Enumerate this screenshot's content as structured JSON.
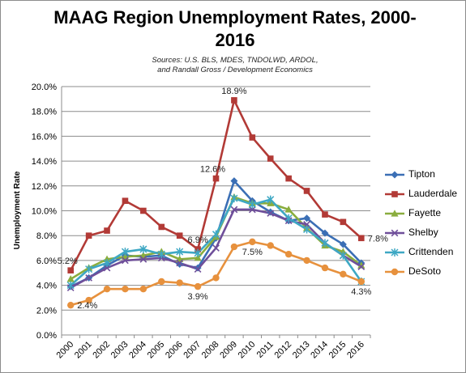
{
  "chart_data": {
    "type": "line",
    "title_line1": "MAAG Region Unemployment Rates, 2000-",
    "title_line2": "2016",
    "subtitle_line1": "Sources: U.S. BLS, MDES, TNDOLWD, ARDOL,",
    "subtitle_line2": "and Randall Gross / Development Economics",
    "ylabel": "Unemployment Rate",
    "xlabel": "",
    "ylim": [
      0,
      20
    ],
    "yticks": [
      "0.0%",
      "2.0%",
      "4.0%",
      "6.0%",
      "8.0%",
      "10.0%",
      "12.0%",
      "14.0%",
      "16.0%",
      "18.0%",
      "20.0%"
    ],
    "categories": [
      "2000",
      "2001",
      "2002",
      "2003",
      "2004",
      "2005",
      "2006",
      "2007",
      "2008",
      "2009",
      "2010",
      "2011",
      "2012",
      "2013",
      "2014",
      "2015",
      "2016"
    ],
    "grid": true,
    "legend_position": "right",
    "series": [
      {
        "name": "Tipton",
        "color": "#3b6fb5",
        "marker": "diamond",
        "values": [
          3.9,
          4.6,
          5.6,
          6.4,
          6.3,
          6.4,
          5.7,
          5.4,
          7.8,
          12.4,
          10.8,
          9.9,
          9.2,
          9.4,
          8.2,
          7.3,
          5.8
        ]
      },
      {
        "name": "Lauderdale",
        "color": "#b23a36",
        "marker": "square",
        "values": [
          5.2,
          8.0,
          8.4,
          10.8,
          10.0,
          8.7,
          8.0,
          6.9,
          12.6,
          18.9,
          15.9,
          14.2,
          12.6,
          11.6,
          9.7,
          9.1,
          7.8
        ]
      },
      {
        "name": "Fayette",
        "color": "#8aad3e",
        "marker": "triangle",
        "values": [
          4.5,
          5.4,
          6.1,
          6.3,
          6.4,
          6.7,
          6.1,
          6.2,
          7.9,
          11.1,
          10.6,
          10.6,
          10.1,
          8.6,
          7.2,
          6.7,
          5.6
        ]
      },
      {
        "name": "Shelby",
        "color": "#6f4f9a",
        "marker": "x",
        "values": [
          3.8,
          4.6,
          5.4,
          6.0,
          6.1,
          6.2,
          5.8,
          5.3,
          7.0,
          10.1,
          10.1,
          9.8,
          9.2,
          8.9,
          7.4,
          6.4,
          5.5
        ]
      },
      {
        "name": "Crittenden",
        "color": "#3ea8c4",
        "marker": "star",
        "values": [
          4.0,
          5.3,
          5.8,
          6.7,
          6.9,
          6.5,
          6.7,
          6.6,
          8.1,
          11.0,
          10.5,
          10.9,
          9.4,
          8.5,
          7.4,
          6.4,
          4.3
        ]
      },
      {
        "name": "DeSoto",
        "color": "#e7913d",
        "marker": "circle",
        "values": [
          2.4,
          2.8,
          3.7,
          3.7,
          3.7,
          4.3,
          4.2,
          3.9,
          4.6,
          7.1,
          7.5,
          7.2,
          6.5,
          6.0,
          5.4,
          4.9,
          4.3
        ]
      }
    ],
    "annotations": [
      {
        "text": "5.2%",
        "x": "2000",
        "series": "Lauderdale",
        "side": "above-left"
      },
      {
        "text": "2.4%",
        "x": "2000",
        "series": "DeSoto",
        "side": "right"
      },
      {
        "text": "6.9%",
        "x": "2007",
        "series": "Lauderdale",
        "side": "above"
      },
      {
        "text": "3.9%",
        "x": "2007",
        "series": "DeSoto",
        "side": "below"
      },
      {
        "text": "12.6%",
        "x": "2008",
        "series": "Lauderdale",
        "side": "above-left"
      },
      {
        "text": "18.9%",
        "x": "2009",
        "series": "Lauderdale",
        "side": "above"
      },
      {
        "text": "7.5%",
        "x": "2010",
        "series": "DeSoto",
        "side": "below"
      },
      {
        "text": "7.8%",
        "x": "2016",
        "series": "Lauderdale",
        "side": "right"
      },
      {
        "text": "4.3%",
        "x": "2016",
        "series": "DeSoto",
        "side": "below"
      }
    ]
  }
}
